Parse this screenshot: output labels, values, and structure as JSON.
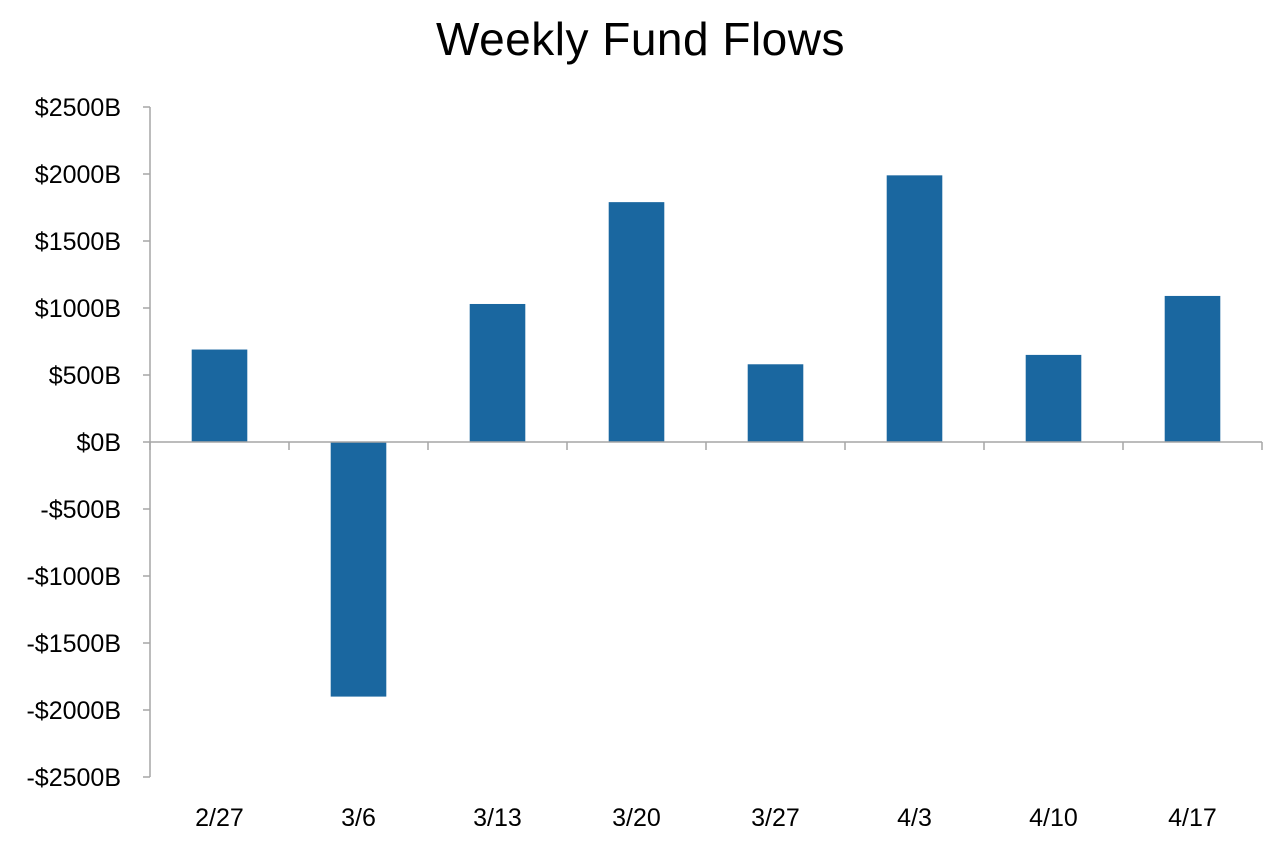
{
  "chart_data": {
    "type": "bar",
    "title": "Weekly Fund Flows",
    "xlabel": "",
    "ylabel": "",
    "categories": [
      "2/27",
      "3/6",
      "3/13",
      "3/20",
      "3/27",
      "4/3",
      "4/10",
      "4/17"
    ],
    "values": [
      690,
      -1900,
      1030,
      1790,
      580,
      1990,
      650,
      1090
    ],
    "ylim": [
      -2500,
      2500
    ],
    "yticks": [
      2500,
      2000,
      1500,
      1000,
      500,
      0,
      -500,
      -1000,
      -1500,
      -2000,
      -2500
    ],
    "ytick_labels": [
      "$2500B",
      "$2000B",
      "$1500B",
      "$1000B",
      "$500B",
      "$0B",
      "-$500B",
      "-$1000B",
      "-$1500B",
      "-$2000B",
      "-$2500B"
    ],
    "grid": false,
    "legend": "none",
    "colors": {
      "bar": "#1a67a0",
      "axis": "#a6a6a6",
      "text": "#000000"
    }
  }
}
